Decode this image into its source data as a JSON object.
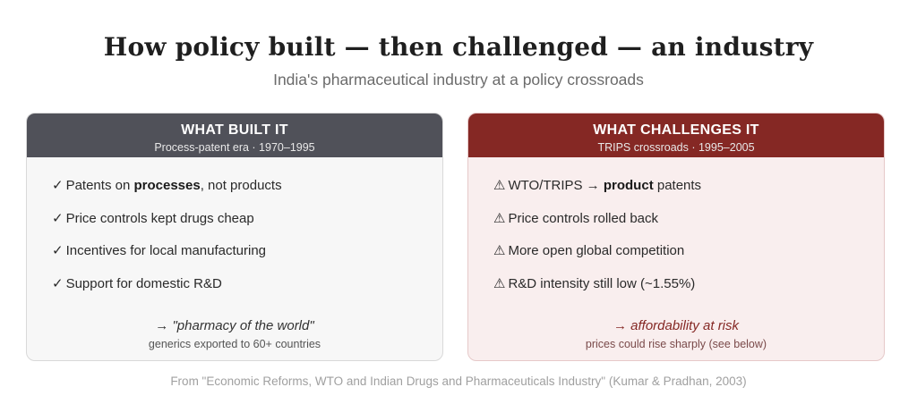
{
  "title": "How policy built — then challenged — an industry",
  "subtitle": "India's pharmaceutical industry at a policy crossroads",
  "left_card": {
    "title": "WHAT BUILT IT",
    "subtitle": "Process-patent era · 1970–1995",
    "mark": "✓",
    "items": [
      {
        "before": "Patents on ",
        "bold": "processes",
        "after": ", not products"
      },
      {
        "before": "Price controls kept drugs cheap",
        "bold": "",
        "after": ""
      },
      {
        "before": "Incentives for local manufacturing",
        "bold": "",
        "after": ""
      },
      {
        "before": "Support for domestic R&D",
        "bold": "",
        "after": ""
      }
    ],
    "outcome": "→ \"pharmacy of the world\"",
    "outcome_note": "generics exported to 60+ countries"
  },
  "right_card": {
    "title": "WHAT CHALLENGES IT",
    "subtitle": "TRIPS crossroads · 1995–2005",
    "mark": "⚠",
    "items": [
      {
        "before": "WTO/TRIPS → ",
        "bold": "product",
        "after": " patents"
      },
      {
        "before": "Price controls rolled back",
        "bold": "",
        "after": ""
      },
      {
        "before": "More open global competition",
        "bold": "",
        "after": ""
      },
      {
        "before": "R&D intensity still low (~1.55%)",
        "bold": "",
        "after": ""
      }
    ],
    "outcome": "→ affordability at risk",
    "outcome_note": "prices could rise sharply (see below)"
  },
  "source": "From \"Economic Reforms, WTO and Indian Drugs and Pharmaceuticals Industry\" (Kumar & Pradhan, 2003)",
  "colors": {
    "left_header": "#505159",
    "right_header": "#852824",
    "right_background": "#f9eeee"
  }
}
